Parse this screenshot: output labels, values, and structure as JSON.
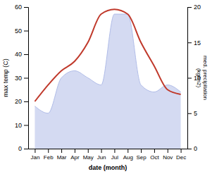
{
  "chart_data": {
    "type": "line",
    "categories": [
      "Jan",
      "Feb",
      "Mar",
      "Apr",
      "May",
      "Jun",
      "Jul",
      "Aug",
      "Sep",
      "Oct",
      "Nov",
      "Dec"
    ],
    "xlabel": "date (month)",
    "ylabel": "max temp (C)",
    "y2label": "med. precipitation\n(kg/m2)",
    "ylim": [
      0,
      60
    ],
    "yticks": [
      0,
      10,
      20,
      30,
      40,
      50,
      60
    ],
    "y2lim": [
      0,
      20
    ],
    "y2ticks": [
      0,
      5,
      10,
      15,
      20
    ],
    "series": [
      {
        "type": "area",
        "axis": "y2",
        "color": "#b0bce8",
        "values": [
          6,
          5,
          10,
          11,
          10,
          9,
          19,
          19,
          9,
          8,
          9,
          8
        ]
      },
      {
        "type": "line",
        "color": "#c0392b",
        "values": [
          20,
          27,
          33,
          37,
          45,
          57,
          59,
          57,
          45,
          35,
          25,
          23
        ]
      }
    ]
  }
}
